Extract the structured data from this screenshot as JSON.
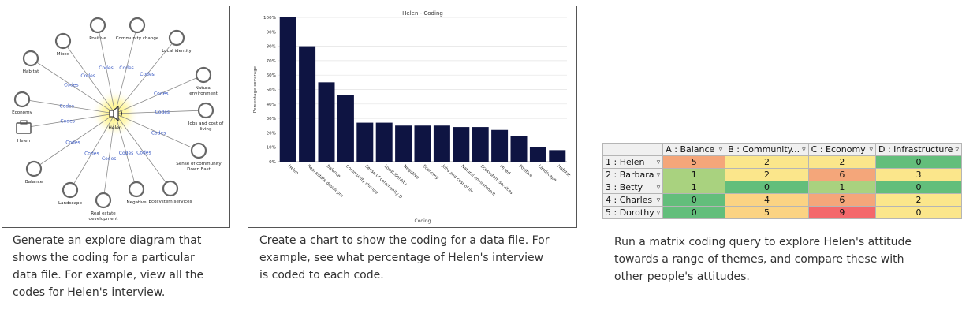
{
  "captions": {
    "diagram": [
      "Generate an explore diagram that",
      "shows the coding for a particular",
      "data file. For example, view all the",
      "codes for Helen's interview."
    ],
    "chart": [
      "Create a chart to show the coding for a data file. For",
      "example, see what percentage of Helen's interview",
      "is coded to each code."
    ],
    "matrix": [
      "Run a matrix coding query to explore Helen's attitude",
      "towards a range of themes, and compare these with",
      "other people's attitudes."
    ]
  },
  "diagram": {
    "center_label": "Helen",
    "edge_label": "Codes",
    "nodes": [
      "Positive",
      "Community change",
      "Local identity",
      "Natural environment",
      "Jobs and cost of living",
      "Sense of community Down East",
      "Ecosystem services",
      "Negative",
      "Real estate development",
      "Landscape",
      "Balance",
      "Helen",
      "Economy",
      "Habitat",
      "Mixed"
    ]
  },
  "chart_data": {
    "type": "bar",
    "title": "Helen - Coding",
    "xlabel": "Coding",
    "ylabel": "Percentage coverage",
    "ylim": [
      0,
      100
    ],
    "yticks": [
      "0%",
      "10%",
      "20%",
      "30%",
      "40%",
      "50%",
      "60%",
      "70%",
      "80%",
      "90%",
      "100%"
    ],
    "categories": [
      "Helen",
      "Real estate developm",
      "Balance",
      "Community change",
      "Sense of community D",
      "Local identity",
      "Negative",
      "Economy",
      "Jobs and cost of liv",
      "Natural environment",
      "Ecosystem services",
      "Mixed",
      "Positive",
      "Landscape",
      "Habitat"
    ],
    "values": [
      100,
      80,
      55,
      46,
      27,
      27,
      25,
      25,
      25,
      24,
      24,
      22,
      18,
      10,
      8
    ],
    "bar_color": "#0e1442",
    "grid": true
  },
  "matrix": {
    "columns": [
      "A : Balance",
      "B : Community...",
      "C : Economy",
      "D : Infrastructure"
    ],
    "rows": [
      {
        "label": "1 : Helen",
        "values": [
          "5",
          "2",
          "2",
          "0"
        ],
        "colors": [
          "#f4a67a",
          "#fbe68b",
          "#fbe68b",
          "#63be7b"
        ]
      },
      {
        "label": "2 : Barbara",
        "values": [
          "1",
          "2",
          "6",
          "3"
        ],
        "colors": [
          "#a9d27f",
          "#fbe68b",
          "#f4a67a",
          "#fbe68b"
        ]
      },
      {
        "label": "3 : Betty",
        "values": [
          "1",
          "0",
          "1",
          "0"
        ],
        "colors": [
          "#a9d27f",
          "#63be7b",
          "#a9d27f",
          "#63be7b"
        ]
      },
      {
        "label": "4 : Charles",
        "values": [
          "0",
          "4",
          "6",
          "2"
        ],
        "colors": [
          "#63be7b",
          "#fbd383",
          "#f4a67a",
          "#fbe68b"
        ]
      },
      {
        "label": "5 : Dorothy",
        "values": [
          "0",
          "5",
          "9",
          "0"
        ],
        "colors": [
          "#63be7b",
          "#fbd383",
          "#f4686b",
          "#fbe68b"
        ]
      }
    ]
  }
}
